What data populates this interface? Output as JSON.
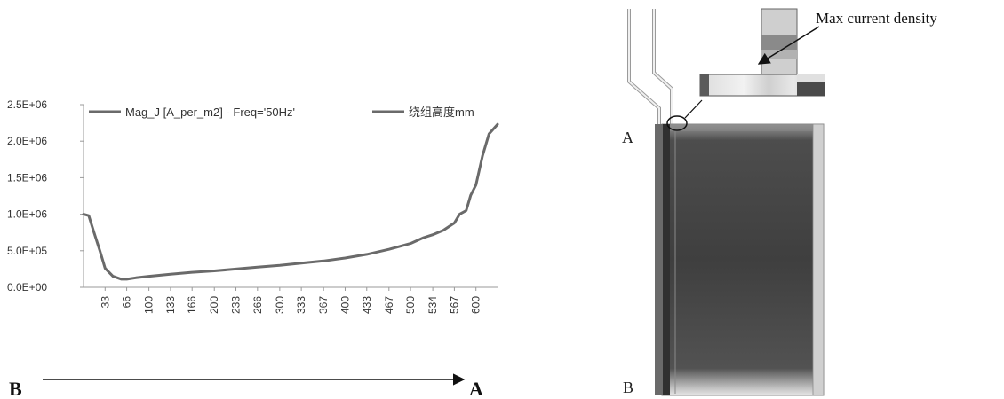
{
  "chart_data": {
    "type": "line",
    "y_tick_labels": [
      "0.0E+00",
      "5.0E+05",
      "1.0E+06",
      "1.5E+06",
      "2.0E+06",
      "2.5E+06"
    ],
    "y_ticks": [
      0,
      500000,
      1000000,
      1500000,
      2000000,
      2500000
    ],
    "ylim": [
      0,
      2500000
    ],
    "x_tick_labels": [
      "33",
      "66",
      "100",
      "133",
      "166",
      "200",
      "233",
      "266",
      "300",
      "333",
      "367",
      "400",
      "433",
      "467",
      "500",
      "534",
      "567",
      "600"
    ],
    "xlim": [
      0,
      633
    ],
    "legend": [
      "Mag_J [A_per_m2] - Freq='50Hz'",
      "绕组高度mm"
    ],
    "legend_position": "top",
    "series": [
      {
        "name": "Mag_J [A_per_m2] - Freq='50Hz'",
        "x": [
          0,
          8,
          16,
          25,
          33,
          45,
          58,
          66,
          80,
          100,
          133,
          166,
          200,
          233,
          266,
          300,
          333,
          367,
          400,
          433,
          467,
          500,
          520,
          534,
          550,
          567,
          575,
          585,
          592,
          600,
          610,
          620,
          633
        ],
        "y": [
          1000000,
          980000,
          750000,
          500000,
          260000,
          150000,
          110000,
          110000,
          130000,
          150000,
          180000,
          205000,
          225000,
          250000,
          275000,
          300000,
          330000,
          360000,
          400000,
          450000,
          520000,
          600000,
          680000,
          720000,
          780000,
          880000,
          1000000,
          1050000,
          1260000,
          1400000,
          1800000,
          2100000,
          2230000
        ]
      }
    ]
  },
  "axis_direction": {
    "start_label": "B",
    "end_label": "A"
  },
  "figure": {
    "annotation": "Max current density",
    "point_a": "A",
    "point_b": "B"
  },
  "colors": {
    "series_line": "#6a6a6a",
    "axis": "#9a9a9a",
    "winding_dark": "#3e3e3e",
    "winding_light": "#e2e2e2"
  }
}
